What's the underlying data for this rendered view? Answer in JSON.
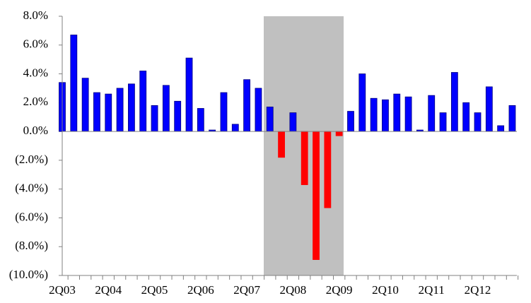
{
  "chart_data": {
    "type": "bar",
    "categories": [
      "2Q03",
      null,
      null,
      null,
      "2Q04",
      null,
      null,
      null,
      "2Q05",
      null,
      null,
      null,
      "2Q06",
      null,
      null,
      null,
      "2Q07",
      null,
      null,
      null,
      "2Q08",
      null,
      null,
      null,
      "2Q09",
      null,
      null,
      null,
      "2Q10",
      null,
      null,
      null,
      "2Q11",
      null,
      null,
      null,
      "2Q12",
      null,
      null,
      null
    ],
    "values": [
      3.4,
      6.7,
      3.7,
      2.7,
      2.6,
      3.0,
      3.3,
      4.2,
      1.8,
      3.2,
      2.1,
      5.1,
      1.6,
      0.1,
      2.7,
      0.5,
      3.6,
      3.0,
      1.7,
      -1.8,
      1.3,
      -3.7,
      -8.9,
      -5.3,
      -0.3,
      1.4,
      4.0,
      2.3,
      2.2,
      2.6,
      2.4,
      0.1,
      2.5,
      1.3,
      4.1,
      2.0,
      1.3,
      3.1,
      0.4,
      1.8
    ],
    "color": "#0000ff",
    "negative_color": "#ff0000",
    "ylim": [
      -10,
      8
    ],
    "yticks": [
      {
        "value": -10,
        "label": "(10.0%)"
      },
      {
        "value": -8,
        "label": "(8.0%)"
      },
      {
        "value": -6,
        "label": "(6.0%)"
      },
      {
        "value": -4,
        "label": "(4.0%)"
      },
      {
        "value": -2,
        "label": "(2.0%)"
      },
      {
        "value": 0,
        "label": "0.0%"
      },
      {
        "value": 2,
        "label": "2.0%"
      },
      {
        "value": 4,
        "label": "4.0%"
      },
      {
        "value": 6,
        "label": "6.0%"
      },
      {
        "value": 8,
        "label": "8.0%"
      }
    ],
    "grid": false
  }
}
